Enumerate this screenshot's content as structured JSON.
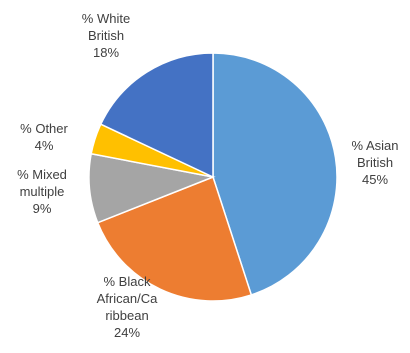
{
  "chart_data": {
    "type": "pie",
    "slices": [
      {
        "label": "% Asian British",
        "label_lines": [
          "% Asian",
          "British"
        ],
        "percent_label": "45%",
        "value": 45,
        "color": "#5B9BD5"
      },
      {
        "label": "% Black African/Caribbean",
        "label_lines": [
          "% Black",
          "African/Ca",
          "ribbean"
        ],
        "percent_label": "24%",
        "value": 24,
        "color": "#ED7D31"
      },
      {
        "label": "% Mixed multiple",
        "label_lines": [
          "% Mixed",
          "multiple"
        ],
        "percent_label": "9%",
        "value": 9,
        "color": "#A5A5A5"
      },
      {
        "label": "% Other",
        "label_lines": [
          "% Other"
        ],
        "percent_label": "4%",
        "value": 4,
        "color": "#FFC000"
      },
      {
        "label": "% White British",
        "label_lines": [
          "% White",
          "British"
        ],
        "percent_label": "18%",
        "value": 18,
        "color": "#4472C4"
      }
    ],
    "start_angle_deg": 0,
    "direction": "clockwise",
    "legend": "none",
    "data_labels": "outside"
  }
}
